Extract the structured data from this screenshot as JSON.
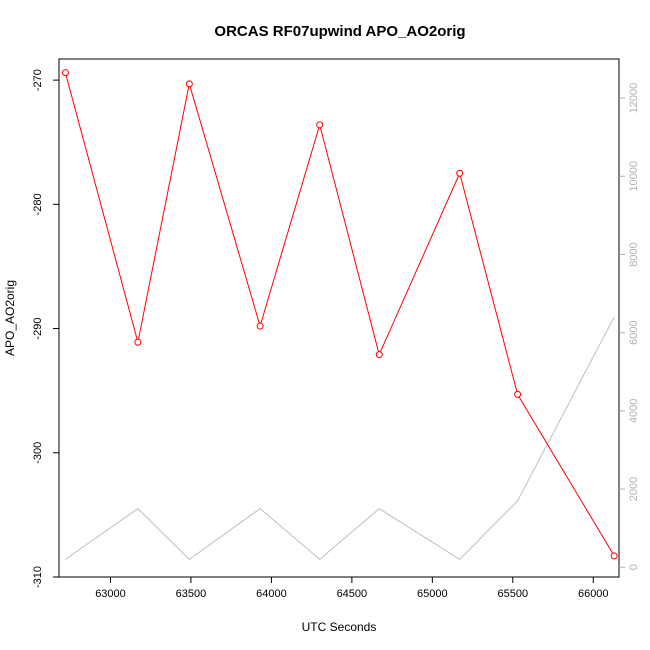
{
  "chart_data": {
    "type": "line",
    "title": "ORCAS RF07upwind APO_AO2orig",
    "xlabel": "UTC Seconds",
    "ylabel": "APO_AO2orig",
    "xlim": [
      62680,
      66160
    ],
    "ylim": [
      -310,
      -268.3
    ],
    "y2lim": [
      -250,
      13000
    ],
    "x_ticks": [
      63000,
      63500,
      64000,
      64500,
      65000,
      65500,
      66000
    ],
    "y_ticks": [
      -310,
      -300,
      -290,
      -280,
      -270
    ],
    "y2_ticks": [
      0,
      2000,
      4000,
      6000,
      8000,
      10000,
      12000
    ],
    "grid": false,
    "series": [
      {
        "axis": "left",
        "color": "#ff0000",
        "markers": true,
        "x": [
          62720,
          63170,
          63490,
          63930,
          64300,
          64670,
          65170,
          65530,
          66130
        ],
        "y": [
          -269.4,
          -291.1,
          -270.3,
          -289.8,
          -273.6,
          -292.1,
          -277.5,
          -295.3,
          -308.3
        ]
      },
      {
        "axis": "right",
        "color": "#bebebe",
        "markers": false,
        "x": [
          62720,
          63170,
          63490,
          63930,
          64300,
          64670,
          65170,
          65530,
          66130
        ],
        "y": [
          200,
          1500,
          200,
          1500,
          200,
          1500,
          200,
          1700,
          6400
        ]
      }
    ]
  }
}
